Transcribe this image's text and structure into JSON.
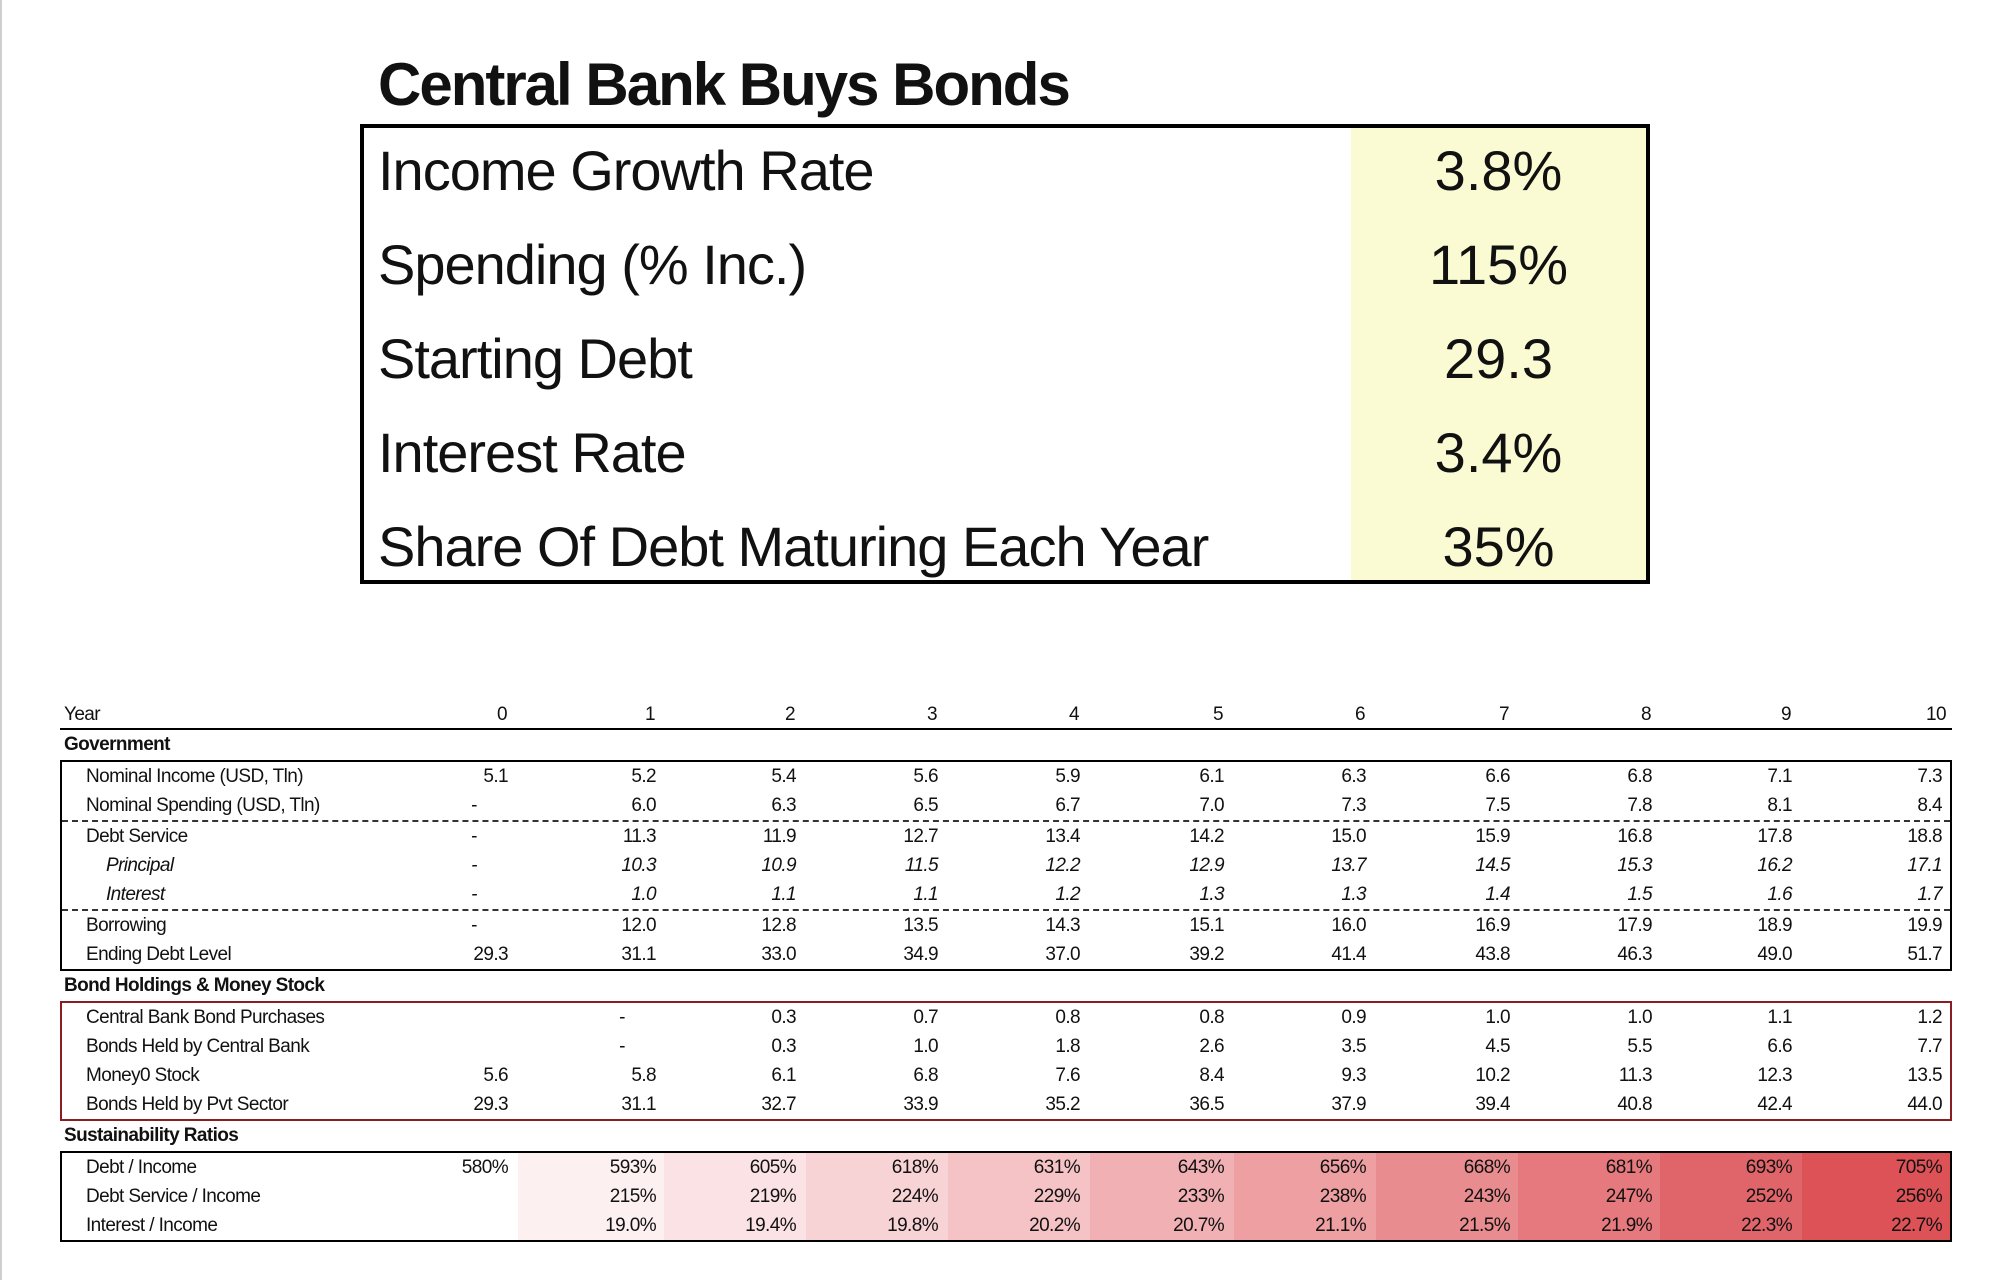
{
  "title": "Central Bank Buys Bonds",
  "parameters": [
    {
      "label": "Income Growth Rate",
      "value": "3.8%"
    },
    {
      "label": "Spending (% Inc.)",
      "value": "115%"
    },
    {
      "label": "Starting Debt",
      "value": "29.3"
    },
    {
      "label": "Interest Rate",
      "value": "3.4%"
    },
    {
      "label": "Share Of Debt Maturing Each Year",
      "value": "35%"
    }
  ],
  "year_label": "Year",
  "years": [
    "0",
    "1",
    "2",
    "3",
    "4",
    "5",
    "6",
    "7",
    "8",
    "9",
    "10"
  ],
  "government": {
    "title": "Government",
    "rows": [
      {
        "label": "Nominal Income (USD, Tln)",
        "values": [
          "5.1",
          "5.2",
          "5.4",
          "5.6",
          "5.9",
          "6.1",
          "6.3",
          "6.6",
          "6.8",
          "7.1",
          "7.3"
        ]
      },
      {
        "label": "Nominal Spending (USD, Tln)",
        "values": [
          "-",
          "6.0",
          "6.3",
          "6.5",
          "6.7",
          "7.0",
          "7.3",
          "7.5",
          "7.8",
          "8.1",
          "8.4"
        ]
      },
      {
        "label": "Debt Service",
        "values": [
          "-",
          "11.3",
          "11.9",
          "12.7",
          "13.4",
          "14.2",
          "15.0",
          "15.9",
          "16.8",
          "17.8",
          "18.8"
        ]
      },
      {
        "label": "Principal",
        "values": [
          "-",
          "10.3",
          "10.9",
          "11.5",
          "12.2",
          "12.9",
          "13.7",
          "14.5",
          "15.3",
          "16.2",
          "17.1"
        ]
      },
      {
        "label": "Interest",
        "values": [
          "-",
          "1.0",
          "1.1",
          "1.1",
          "1.2",
          "1.3",
          "1.3",
          "1.4",
          "1.5",
          "1.6",
          "1.7"
        ]
      },
      {
        "label": "Borrowing",
        "values": [
          "-",
          "12.0",
          "12.8",
          "13.5",
          "14.3",
          "15.1",
          "16.0",
          "16.9",
          "17.9",
          "18.9",
          "19.9"
        ]
      },
      {
        "label": "Ending Debt Level",
        "values": [
          "29.3",
          "31.1",
          "33.0",
          "34.9",
          "37.0",
          "39.2",
          "41.4",
          "43.8",
          "46.3",
          "49.0",
          "51.7"
        ]
      }
    ]
  },
  "bonds": {
    "title": "Bond Holdings & Money Stock",
    "rows": [
      {
        "label": "Central Bank Bond Purchases",
        "values": [
          "",
          "-",
          "0.3",
          "0.7",
          "0.8",
          "0.8",
          "0.9",
          "1.0",
          "1.0",
          "1.1",
          "1.2"
        ]
      },
      {
        "label": "Bonds Held by Central Bank",
        "values": [
          "",
          "-",
          "0.3",
          "1.0",
          "1.8",
          "2.6",
          "3.5",
          "4.5",
          "5.5",
          "6.6",
          "7.7"
        ]
      },
      {
        "label": "Money0 Stock",
        "values": [
          "5.6",
          "5.8",
          "6.1",
          "6.8",
          "7.6",
          "8.4",
          "9.3",
          "10.2",
          "11.3",
          "12.3",
          "13.5"
        ]
      },
      {
        "label": "Bonds Held by Pvt Sector",
        "values": [
          "29.3",
          "31.1",
          "32.7",
          "33.9",
          "35.2",
          "36.5",
          "37.9",
          "39.4",
          "40.8",
          "42.4",
          "44.0"
        ]
      }
    ]
  },
  "sustainability": {
    "title": "Sustainability Ratios",
    "heat_colors": [
      "#ffffff",
      "#fdf0f1",
      "#fbe2e4",
      "#f8d3d6",
      "#f5c3c6",
      "#f1b1b4",
      "#ed9fa2",
      "#e98c90",
      "#e5797d",
      "#e0656a",
      "#dc5257"
    ],
    "rows": [
      {
        "label": "Debt / Income",
        "values": [
          "580%",
          "593%",
          "605%",
          "618%",
          "631%",
          "643%",
          "656%",
          "668%",
          "681%",
          "693%",
          "705%"
        ]
      },
      {
        "label": "Debt Service / Income",
        "values": [
          "",
          "215%",
          "219%",
          "224%",
          "229%",
          "233%",
          "238%",
          "243%",
          "247%",
          "252%",
          "256%"
        ]
      },
      {
        "label": "Interest / Income",
        "values": [
          "",
          "19.0%",
          "19.4%",
          "19.8%",
          "20.2%",
          "20.7%",
          "21.1%",
          "21.5%",
          "21.9%",
          "22.3%",
          "22.7%"
        ]
      }
    ]
  }
}
